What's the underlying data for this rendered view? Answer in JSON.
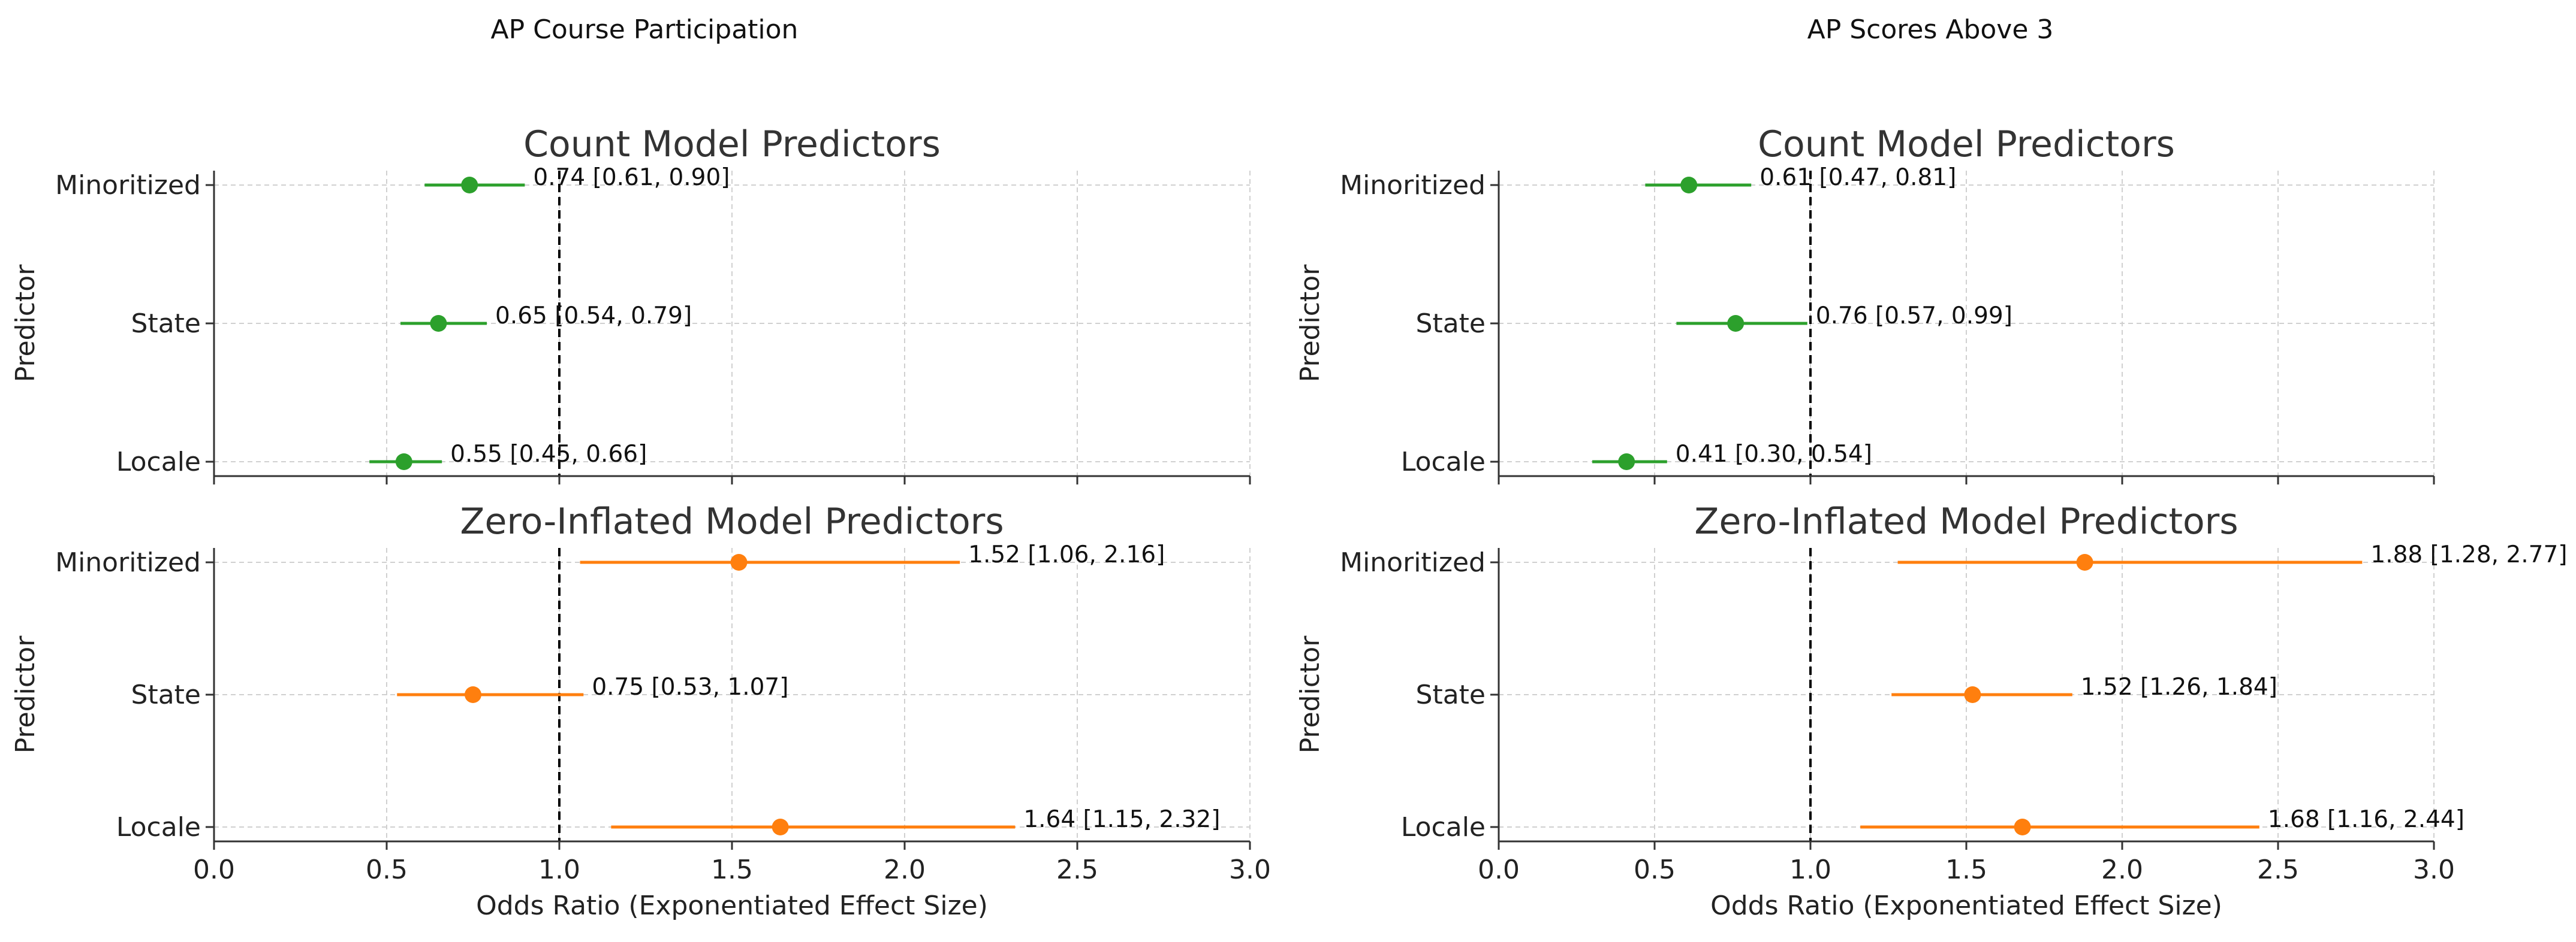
{
  "colors": {
    "count": "#2ca02c",
    "zero": "#ff7f0e",
    "axis": "#333333",
    "grid": "#d0d0d0",
    "ref": "#000000"
  },
  "column_titles": [
    "AP Course Participation",
    "AP Scores Above 3"
  ],
  "chart_data": [
    {
      "type": "forest",
      "column": "AP Course Participation",
      "title": "Count Model Predictors",
      "xlabel": "",
      "ylabel": "Predictor",
      "xlim": [
        0,
        3
      ],
      "xticks": [],
      "grid": true,
      "ref_line": 1.0,
      "color_key": "count",
      "categories": [
        "Minoritized",
        "State",
        "Locale"
      ],
      "values": [
        0.74,
        0.65,
        0.55
      ],
      "ci_low": [
        0.61,
        0.54,
        0.45
      ],
      "ci_high": [
        0.9,
        0.79,
        0.66
      ],
      "labels": [
        "0.74 [0.61, 0.90]",
        "0.65 [0.54, 0.79]",
        "0.55 [0.45, 0.66]"
      ]
    },
    {
      "type": "forest",
      "column": "AP Scores Above 3",
      "title": "Count Model Predictors",
      "xlabel": "",
      "ylabel": "Predictor",
      "xlim": [
        0,
        3
      ],
      "xticks": [],
      "grid": true,
      "ref_line": 1.0,
      "color_key": "count",
      "categories": [
        "Minoritized",
        "State",
        "Locale"
      ],
      "values": [
        0.61,
        0.76,
        0.41
      ],
      "ci_low": [
        0.47,
        0.57,
        0.3
      ],
      "ci_high": [
        0.81,
        0.99,
        0.54
      ],
      "labels": [
        "0.61 [0.47, 0.81]",
        "0.76 [0.57, 0.99]",
        "0.41 [0.30, 0.54]"
      ]
    },
    {
      "type": "forest",
      "column": "AP Course Participation",
      "title": "Zero-Inflated Model Predictors",
      "xlabel": "Odds Ratio (Exponentiated Effect Size)",
      "ylabel": "Predictor",
      "xlim": [
        0,
        3
      ],
      "xticks": [
        "0.0",
        "0.5",
        "1.0",
        "1.5",
        "2.0",
        "2.5",
        "3.0"
      ],
      "grid": true,
      "ref_line": 1.0,
      "color_key": "zero",
      "categories": [
        "Minoritized",
        "State",
        "Locale"
      ],
      "values": [
        1.52,
        0.75,
        1.64
      ],
      "ci_low": [
        1.06,
        0.53,
        1.15
      ],
      "ci_high": [
        2.16,
        1.07,
        2.32
      ],
      "labels": [
        "1.52 [1.06, 2.16]",
        "0.75 [0.53, 1.07]",
        "1.64 [1.15, 2.32]"
      ]
    },
    {
      "type": "forest",
      "column": "AP Scores Above 3",
      "title": "Zero-Inflated Model Predictors",
      "xlabel": "Odds Ratio (Exponentiated Effect Size)",
      "ylabel": "Predictor",
      "xlim": [
        0,
        3
      ],
      "xticks": [
        "0.0",
        "0.5",
        "1.0",
        "1.5",
        "2.0",
        "2.5",
        "3.0"
      ],
      "grid": true,
      "ref_line": 1.0,
      "color_key": "zero",
      "categories": [
        "Minoritized",
        "State",
        "Locale"
      ],
      "values": [
        1.88,
        1.52,
        1.68
      ],
      "ci_low": [
        1.28,
        1.26,
        1.16
      ],
      "ci_high": [
        2.77,
        1.84,
        2.44
      ],
      "labels": [
        "1.88 [1.28, 2.77]",
        "1.52 [1.26, 1.84]",
        "1.68 [1.16, 2.44]"
      ]
    }
  ]
}
